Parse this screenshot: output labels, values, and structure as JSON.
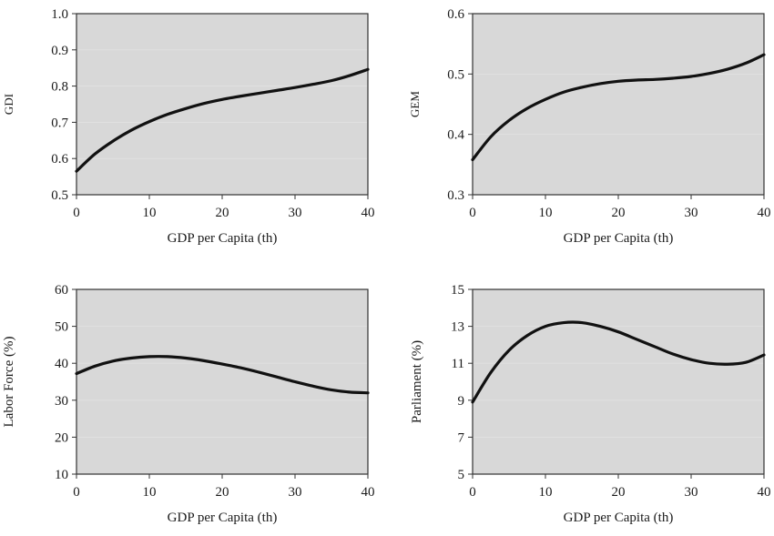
{
  "chart_data": [
    {
      "type": "line",
      "xlabel": "GDP per Capita (th)",
      "ylabel": "GDI",
      "xlim": [
        0,
        40
      ],
      "ylim": [
        0.5,
        1.0
      ],
      "xticks": [
        0,
        10,
        20,
        30,
        40
      ],
      "yticks": [
        0.5,
        0.6,
        0.7,
        0.8,
        0.9,
        1.0
      ],
      "ytick_labels": [
        "0.5",
        "0.6",
        "0.7",
        "0.8",
        "0.9",
        "1.0"
      ],
      "grid": false,
      "series": [
        {
          "x": [
            0,
            2.5,
            5,
            7.5,
            10,
            12.5,
            15,
            17.5,
            20,
            22.5,
            25,
            27.5,
            30,
            32.5,
            35,
            37.5,
            40
          ],
          "y": [
            0.565,
            0.612,
            0.648,
            0.678,
            0.702,
            0.722,
            0.738,
            0.752,
            0.763,
            0.772,
            0.78,
            0.788,
            0.796,
            0.805,
            0.815,
            0.829,
            0.846
          ]
        }
      ]
    },
    {
      "type": "line",
      "xlabel": "GDP per Capita (th)",
      "ylabel": "GEM",
      "xlim": [
        0,
        40
      ],
      "ylim": [
        0.3,
        0.6
      ],
      "xticks": [
        0,
        10,
        20,
        30,
        40
      ],
      "yticks": [
        0.3,
        0.4,
        0.5,
        0.6
      ],
      "ytick_labels": [
        "0.3",
        "0.4",
        "0.5",
        "0.6"
      ],
      "grid": false,
      "series": [
        {
          "x": [
            0,
            2.5,
            5,
            7.5,
            10,
            12.5,
            15,
            17.5,
            20,
            22.5,
            25,
            27.5,
            30,
            32.5,
            35,
            37.5,
            40
          ],
          "y": [
            0.358,
            0.396,
            0.423,
            0.443,
            0.458,
            0.47,
            0.478,
            0.484,
            0.488,
            0.49,
            0.491,
            0.493,
            0.496,
            0.501,
            0.508,
            0.518,
            0.532
          ]
        }
      ]
    },
    {
      "type": "line",
      "xlabel": "GDP per Capita (th)",
      "ylabel": "Labor Force (%)",
      "xlim": [
        0,
        40
      ],
      "ylim": [
        10,
        60
      ],
      "xticks": [
        0,
        10,
        20,
        30,
        40
      ],
      "yticks": [
        10,
        20,
        30,
        40,
        50,
        60
      ],
      "ytick_labels": [
        "10",
        "20",
        "30",
        "40",
        "50",
        "60"
      ],
      "grid": false,
      "series": [
        {
          "x": [
            0,
            2.5,
            5,
            7.5,
            10,
            12.5,
            15,
            17.5,
            20,
            22.5,
            25,
            27.5,
            30,
            32.5,
            35,
            37.5,
            40
          ],
          "y": [
            37.2,
            39.2,
            40.6,
            41.4,
            41.8,
            41.8,
            41.4,
            40.7,
            39.8,
            38.8,
            37.6,
            36.3,
            35.0,
            33.8,
            32.8,
            32.2,
            32.0
          ]
        }
      ]
    },
    {
      "type": "line",
      "xlabel": "GDP per Capita (th)",
      "ylabel": "Parliament (%)",
      "xlim": [
        0,
        40
      ],
      "ylim": [
        5,
        15
      ],
      "xticks": [
        0,
        10,
        20,
        30,
        40
      ],
      "yticks": [
        5,
        7,
        9,
        11,
        13,
        15
      ],
      "ytick_labels": [
        "5",
        "7",
        "9",
        "11",
        "13",
        "15"
      ],
      "grid": false,
      "series": [
        {
          "x": [
            0,
            2.5,
            5,
            7.5,
            10,
            12.5,
            15,
            17.5,
            20,
            22.5,
            25,
            27.5,
            30,
            32.5,
            35,
            37.5,
            40
          ],
          "y": [
            8.9,
            10.5,
            11.7,
            12.5,
            13.0,
            13.2,
            13.2,
            13.0,
            12.7,
            12.3,
            11.9,
            11.5,
            11.2,
            11.0,
            10.95,
            11.05,
            11.45
          ]
        }
      ]
    }
  ]
}
